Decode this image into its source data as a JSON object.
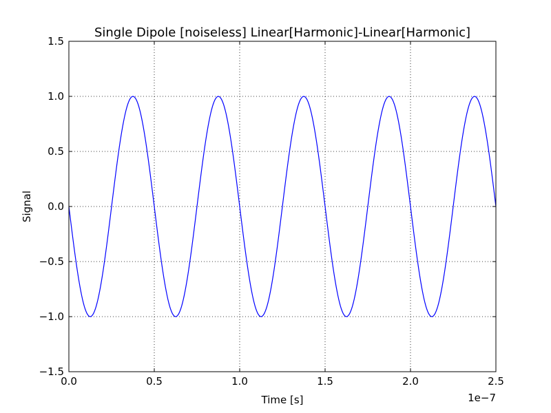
{
  "chart_data": {
    "type": "line",
    "title": "Single Dipole [noiseless] Linear[Harmonic]-Linear[Harmonic]",
    "xlabel": "Time [s]",
    "ylabel": "Signal",
    "x_offset_label": "1e−7",
    "xlim": [
      0.0,
      2.5e-07
    ],
    "ylim": [
      -1.5,
      1.5
    ],
    "x_ticks": [
      0.0,
      5e-08,
      1e-07,
      1.5e-07,
      2e-07,
      2.5e-07
    ],
    "x_tick_labels": [
      "0.0",
      "0.5",
      "1.0",
      "1.5",
      "2.0",
      "2.5"
    ],
    "y_ticks": [
      -1.5,
      -1.0,
      -0.5,
      0.0,
      0.5,
      1.0,
      1.5
    ],
    "y_tick_labels": [
      "−1.5",
      "−1.0",
      "−0.5",
      "0.0",
      "0.5",
      "1.0",
      "1.5"
    ],
    "grid": true,
    "series": [
      {
        "color": "#0000ff",
        "function": "-sin(2*pi*f*t)",
        "frequency_hz": 20000000,
        "amplitude": 1.0,
        "x": [
          0,
          1.25e-08,
          2.5e-08,
          3.75e-08,
          5e-08,
          6.25e-08,
          7.5e-08,
          8.75e-08,
          1e-07,
          1.125e-07,
          1.25e-07,
          1.375e-07,
          1.5e-07,
          1.625e-07,
          1.75e-07,
          1.875e-07,
          2e-07,
          2.125e-07,
          2.25e-07,
          2.375e-07,
          2.5e-07
        ],
        "values": [
          0,
          -1,
          0,
          1,
          0,
          -1,
          0,
          1,
          0,
          -1,
          0,
          1,
          0,
          -1,
          0,
          1,
          0,
          -1,
          0,
          1,
          0
        ]
      }
    ]
  }
}
